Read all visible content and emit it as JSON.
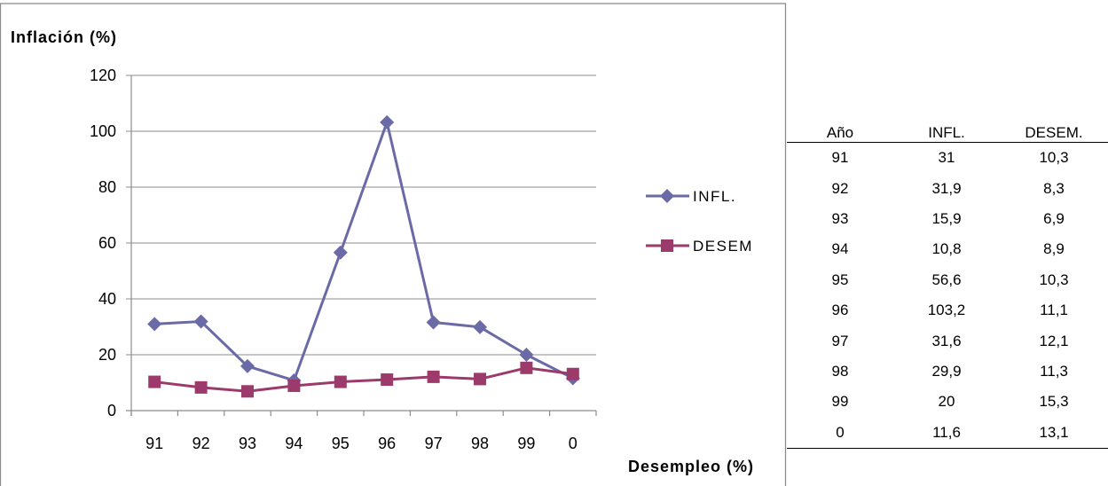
{
  "chart_data": {
    "type": "line",
    "title": "Inflación (%)",
    "xlabel": "Desempleo (%)",
    "ylabel": "",
    "categories": [
      "91",
      "92",
      "93",
      "94",
      "95",
      "96",
      "97",
      "98",
      "99",
      "0"
    ],
    "ylim": [
      0,
      120
    ],
    "yticks": [
      "0",
      "20",
      "40",
      "60",
      "80",
      "100",
      "120"
    ],
    "grid": true,
    "legend_position": "right",
    "series": [
      {
        "name": "INFL.",
        "color": "#6a6aa6",
        "marker": "diamond",
        "values": [
          31,
          31.9,
          15.9,
          10.8,
          56.6,
          103.2,
          31.6,
          29.9,
          20,
          11.6
        ]
      },
      {
        "name": "DESEM",
        "color": "#9b3a6b",
        "marker": "square",
        "values": [
          10.3,
          8.3,
          6.9,
          8.9,
          10.3,
          11.1,
          12.1,
          11.3,
          15.3,
          13.1
        ]
      }
    ]
  },
  "table": {
    "headers": [
      "Año",
      "INFL.",
      "DESEM."
    ],
    "rows": [
      [
        "91",
        "31",
        "10,3"
      ],
      [
        "92",
        "31,9",
        "8,3"
      ],
      [
        "93",
        "15,9",
        "6,9"
      ],
      [
        "94",
        "10,8",
        "8,9"
      ],
      [
        "95",
        "56,6",
        "10,3"
      ],
      [
        "96",
        "103,2",
        "11,1"
      ],
      [
        "97",
        "31,6",
        "12,1"
      ],
      [
        "98",
        "29,9",
        "11,3"
      ],
      [
        "99",
        "20",
        "15,3"
      ],
      [
        "0",
        "11,6",
        "13,1"
      ]
    ]
  }
}
